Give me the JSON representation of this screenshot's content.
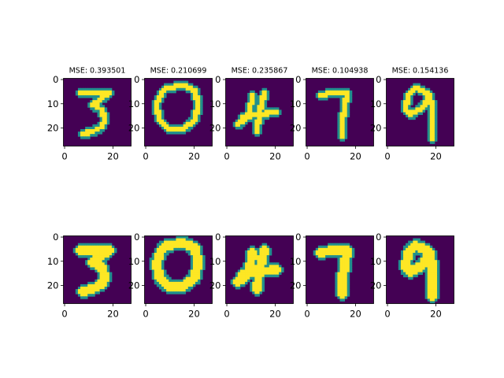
{
  "figure": {
    "background": "#ffffff",
    "colormap": "viridis",
    "colors": {
      "low": "#440154",
      "mid": "#21908c",
      "high": "#fde725"
    }
  },
  "chart_data": {
    "type": "heatmap",
    "grid": {
      "rows": 2,
      "cols": 5
    },
    "image_size": [
      28,
      28
    ],
    "xticks": [
      0,
      20
    ],
    "yticks": [
      0,
      10,
      20
    ],
    "panels_top": [
      {
        "title": "MSE: 0.393501",
        "digit": "3"
      },
      {
        "title": "MSE: 0.210699",
        "digit": "0"
      },
      {
        "title": "MSE: 0.235867",
        "digit": "4"
      },
      {
        "title": "MSE: 0.104938",
        "digit": "7"
      },
      {
        "title": "MSE: 0.154136",
        "digit": "9"
      }
    ],
    "panels_bottom": [
      {
        "digit": "3"
      },
      {
        "digit": "0"
      },
      {
        "digit": "4"
      },
      {
        "digit": "7"
      },
      {
        "digit": "9"
      }
    ]
  }
}
